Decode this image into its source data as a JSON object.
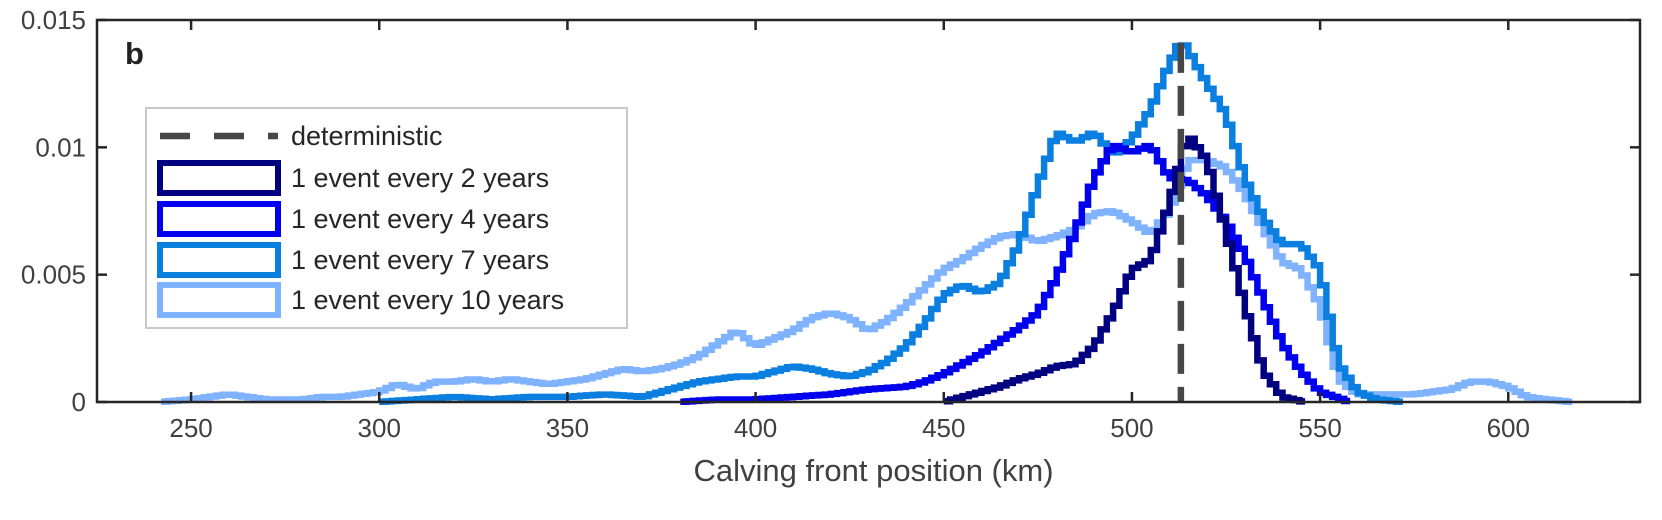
{
  "chart_data": {
    "type": "line",
    "panel_label": "b",
    "title": "",
    "xlabel": "Calving front position (km)",
    "ylabel": "",
    "xlim": [
      225,
      635
    ],
    "ylim": [
      0,
      0.015
    ],
    "xticks": [
      250,
      300,
      350,
      400,
      450,
      500,
      550,
      600
    ],
    "yticks": [
      0,
      0.005,
      0.01,
      0.015
    ],
    "ytick_labels": [
      "0",
      "0.005",
      "0.01",
      "0.015"
    ],
    "grid": false,
    "legend_position": "upper-left",
    "deterministic": {
      "name": "deterministic",
      "x": 513,
      "color": "#474747"
    },
    "series": [
      {
        "name": "1 event every 10 years",
        "color": "#7fb2ff",
        "x": [
          242,
          250,
          255,
          260,
          265,
          270,
          275,
          280,
          285,
          290,
          295,
          300,
          305,
          310,
          315,
          320,
          325,
          330,
          335,
          340,
          345,
          350,
          355,
          360,
          365,
          370,
          375,
          380,
          385,
          390,
          395,
          400,
          405,
          410,
          415,
          420,
          425,
          430,
          435,
          440,
          445,
          450,
          455,
          460,
          465,
          470,
          475,
          480,
          485,
          490,
          495,
          500,
          505,
          510,
          515,
          520,
          525,
          530,
          535,
          540,
          545,
          550,
          555,
          560,
          565,
          570,
          575,
          580,
          585,
          590,
          595,
          600,
          605,
          610,
          617
        ],
        "values": [
          0,
          0.0001,
          0.0002,
          0.0003,
          0.0002,
          0.0001,
          0.0001,
          0.0001,
          0.0002,
          0.0002,
          0.0003,
          0.0004,
          0.0007,
          0.0005,
          0.0008,
          0.0008,
          0.0009,
          0.0008,
          0.0009,
          0.0008,
          0.0007,
          0.0008,
          0.0009,
          0.0011,
          0.0013,
          0.0012,
          0.0013,
          0.0015,
          0.0018,
          0.0023,
          0.0028,
          0.0022,
          0.0025,
          0.0028,
          0.0033,
          0.0035,
          0.0033,
          0.0028,
          0.0032,
          0.0038,
          0.0045,
          0.0052,
          0.0056,
          0.0061,
          0.0065,
          0.0066,
          0.0063,
          0.0065,
          0.0068,
          0.0074,
          0.0075,
          0.0071,
          0.0066,
          0.0075,
          0.0095,
          0.0095,
          0.0092,
          0.0082,
          0.0068,
          0.0055,
          0.0052,
          0.0038,
          0.0009,
          0.0003,
          0.0003,
          0.0003,
          0.0003,
          0.0004,
          0.0005,
          0.0008,
          0.0008,
          0.0006,
          0.0002,
          0.0001,
          0
        ]
      },
      {
        "name": "1 event every 7 years",
        "color": "#0a7fe0",
        "x": [
          300,
          310,
          320,
          330,
          340,
          350,
          360,
          370,
          375,
          380,
          385,
          390,
          395,
          400,
          405,
          410,
          415,
          420,
          425,
          430,
          435,
          440,
          445,
          450,
          455,
          460,
          465,
          470,
          475,
          480,
          485,
          490,
          495,
          500,
          505,
          510,
          513,
          515,
          520,
          525,
          530,
          535,
          540,
          545,
          550,
          555,
          560,
          565,
          572
        ],
        "values": [
          0,
          0.0001,
          0.0002,
          0.0001,
          0.0002,
          0.0002,
          0.0003,
          0.0002,
          0.0004,
          0.0006,
          0.0008,
          0.0009,
          0.001,
          0.001,
          0.0012,
          0.0014,
          0.0013,
          0.0011,
          0.001,
          0.0012,
          0.0016,
          0.0022,
          0.0031,
          0.0042,
          0.0046,
          0.0043,
          0.0047,
          0.0062,
          0.0085,
          0.0106,
          0.0102,
          0.0106,
          0.0097,
          0.0103,
          0.0115,
          0.0133,
          0.0142,
          0.0138,
          0.0125,
          0.0113,
          0.0088,
          0.0072,
          0.0062,
          0.0062,
          0.0052,
          0.0015,
          0.0004,
          0.0001,
          0
        ]
      },
      {
        "name": "1 event every 4 years",
        "color": "#0000ee",
        "x": [
          380,
          390,
          400,
          410,
          420,
          430,
          440,
          445,
          450,
          455,
          460,
          465,
          470,
          475,
          480,
          485,
          490,
          495,
          500,
          505,
          510,
          515,
          520,
          525,
          530,
          535,
          540,
          545,
          550,
          558
        ],
        "values": [
          0,
          0.0001,
          0.0001,
          0.0002,
          0.0003,
          0.0005,
          0.0006,
          0.0008,
          0.0011,
          0.0015,
          0.0019,
          0.0024,
          0.0029,
          0.0035,
          0.0049,
          0.0067,
          0.0088,
          0.0101,
          0.0098,
          0.0101,
          0.0088,
          0.0087,
          0.0081,
          0.0071,
          0.0058,
          0.004,
          0.0023,
          0.0012,
          0.0004,
          0
        ]
      },
      {
        "name": "1 event every 2 years",
        "color": "#000080",
        "x": [
          450,
          455,
          460,
          465,
          470,
          475,
          480,
          485,
          490,
          495,
          500,
          505,
          510,
          513,
          515,
          520,
          525,
          530,
          535,
          540,
          546
        ],
        "values": [
          0,
          0.0002,
          0.0004,
          0.0006,
          0.0009,
          0.0011,
          0.0014,
          0.0015,
          0.0022,
          0.0035,
          0.0052,
          0.0056,
          0.0078,
          0.0096,
          0.0105,
          0.0095,
          0.0067,
          0.0038,
          0.0012,
          0.0002,
          0
        ]
      }
    ]
  }
}
